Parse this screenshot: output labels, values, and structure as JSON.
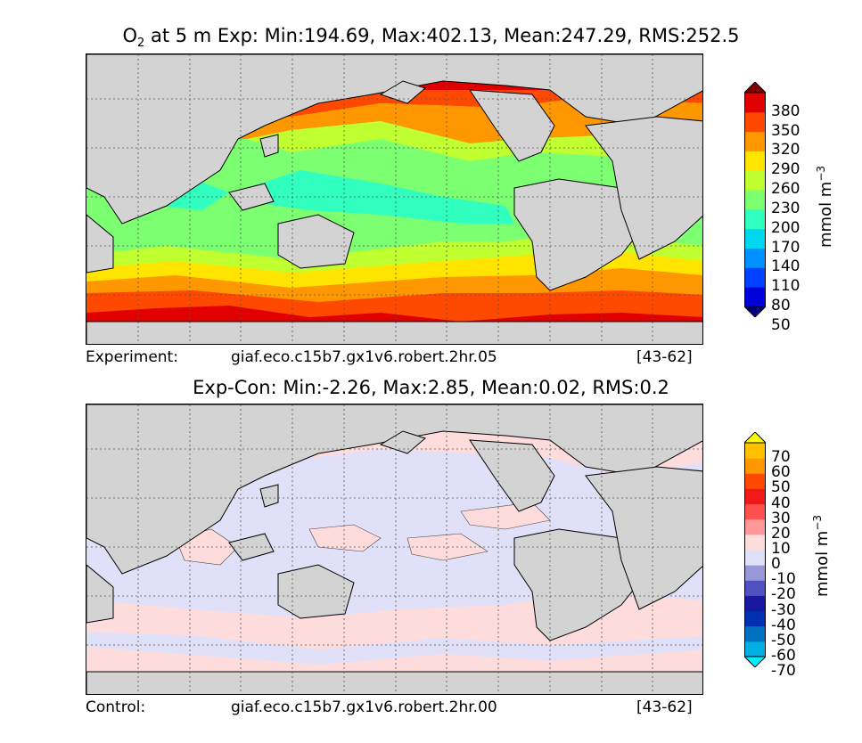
{
  "top_panel": {
    "title_species": "O",
    "title_subscript": "2",
    "title_rest": "at 5 m Exp: Min:194.69, Max:402.13, Mean:247.29, RMS:252.5",
    "footer_left": "Experiment:",
    "footer_middle": "giaf.eco.c15b7.gx1v6.robert.2hr.05",
    "footer_right": "[43-62]",
    "colorbar": {
      "title": "mmol m",
      "title_exponent": "−3",
      "ticks": [
        "380",
        "350",
        "320",
        "290",
        "260",
        "230",
        "200",
        "170",
        "140",
        "110",
        "80",
        "50"
      ],
      "colors": [
        "#000080",
        "#0000dd",
        "#0040ff",
        "#0090ff",
        "#00d8f0",
        "#30ffc0",
        "#7cff70",
        "#c0ff30",
        "#ffe400",
        "#ff9800",
        "#ff4800",
        "#e00000",
        "#800000"
      ]
    }
  },
  "bottom_panel": {
    "title": "Exp-Con: Min:-2.26, Max:2.85, Mean:0.02, RMS:0.2",
    "footer_left": "Control:",
    "footer_middle": "giaf.eco.c15b7.gx1v6.robert.2hr.00",
    "footer_right": "[43-62]",
    "colorbar": {
      "title": "mmol m",
      "title_exponent": "−3",
      "ticks": [
        "70",
        "60",
        "50",
        "40",
        "30",
        "20",
        "10",
        "0",
        "-10",
        "-20",
        "-30",
        "-40",
        "-50",
        "-60",
        "-70"
      ],
      "colors": [
        "#00eeff",
        "#00b0e0",
        "#0070c0",
        "#0030b0",
        "#1818a0",
        "#5050c0",
        "#9898d8",
        "#e0e0f8",
        "#ffdcdc",
        "#ff9898",
        "#ff5050",
        "#f01818",
        "#ff4800",
        "#ff9800",
        "#ffc000",
        "#ffff00"
      ]
    }
  },
  "colors": {
    "land": "#d3d3d3",
    "coast": "#000000",
    "grid": "#555555"
  }
}
